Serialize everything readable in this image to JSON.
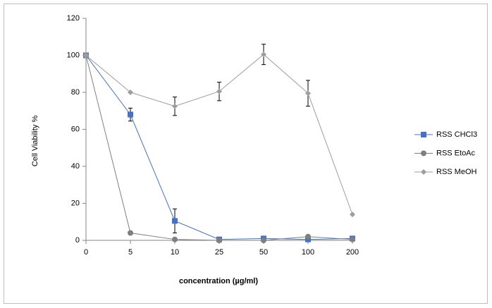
{
  "chart_data": {
    "type": "line",
    "x_label": "concentration (µg/ml)",
    "y_label": "Cell Viability %",
    "categories": [
      "0",
      "5",
      "10",
      "25",
      "50",
      "100",
      "200"
    ],
    "series": [
      {
        "name": "RSS CHCl3",
        "color": "#4472c4",
        "marker": "square",
        "values": [
          100,
          68,
          10.5,
          0.5,
          1,
          0.5,
          1
        ],
        "errors": [
          null,
          3.5,
          6.5,
          null,
          null,
          null,
          null
        ]
      },
      {
        "name": "RSS EtoAc",
        "color": "#7f7f7f",
        "marker": "circle",
        "values": [
          100,
          4,
          0.5,
          0,
          0,
          2,
          0.5
        ],
        "errors": [
          null,
          null,
          null,
          null,
          null,
          null,
          null
        ]
      },
      {
        "name": "RSS MeOH",
        "color": "#9e9e9e",
        "marker": "diamond",
        "values": [
          100,
          80,
          72.5,
          80.5,
          100.5,
          79.5,
          14
        ],
        "errors": [
          null,
          null,
          5,
          5,
          5.5,
          7,
          null
        ]
      }
    ],
    "ylim": [
      0,
      120
    ],
    "yticks": [
      0,
      20,
      40,
      60,
      80,
      100,
      120
    ],
    "legend": "right"
  }
}
